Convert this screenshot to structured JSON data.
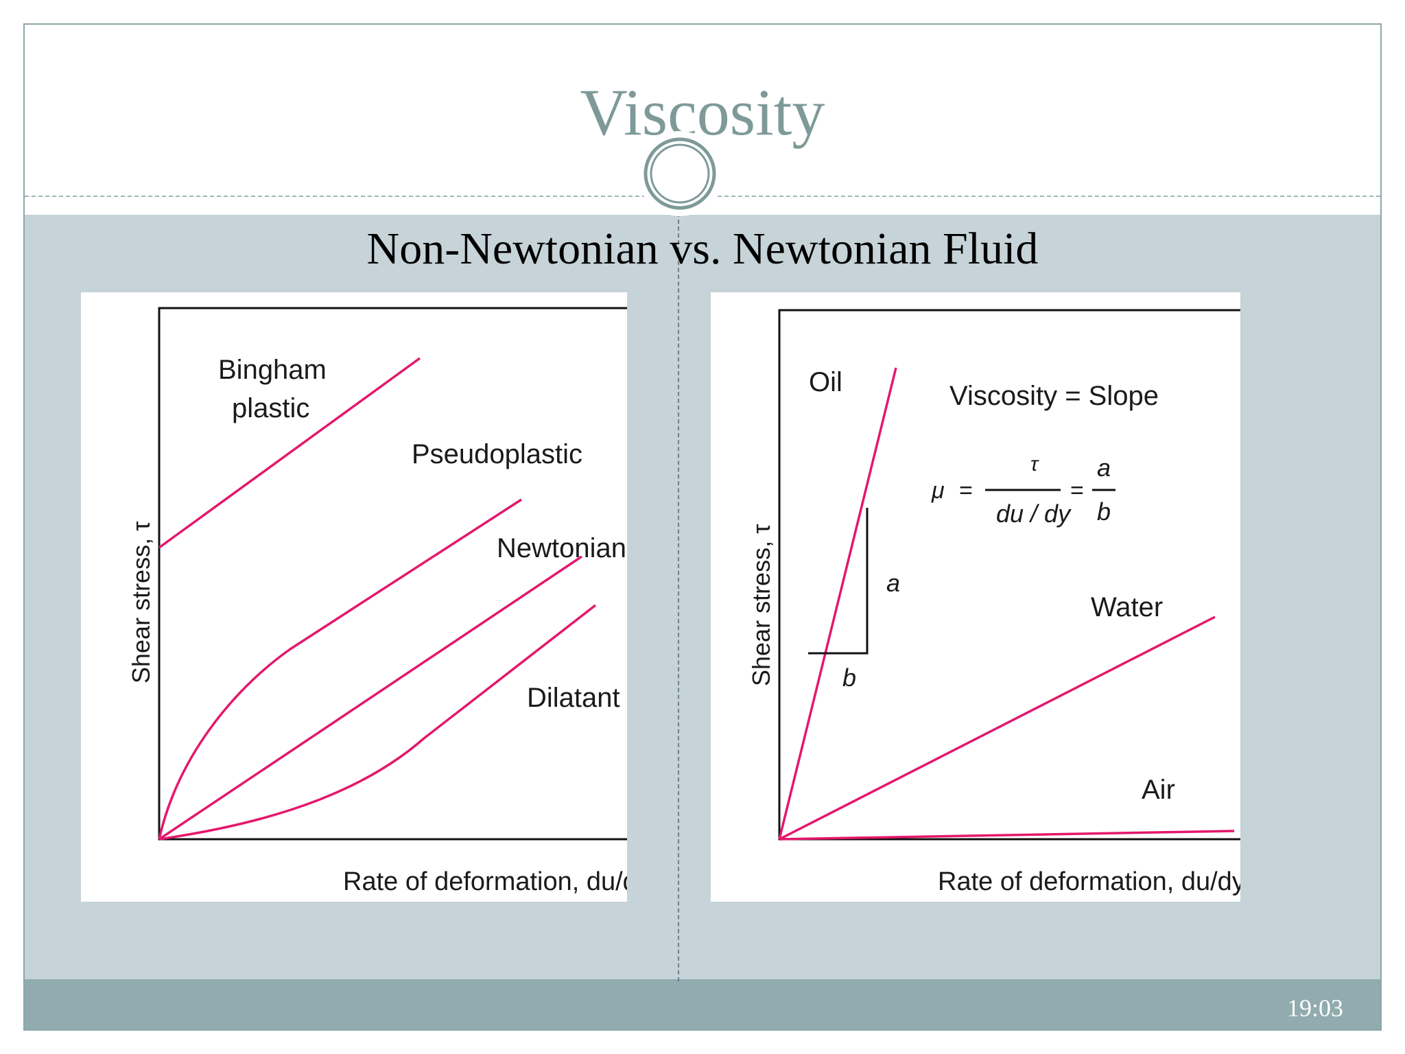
{
  "slide": {
    "title": "Viscosity",
    "subtitle": "Non-Newtonian vs. Newtonian Fluid",
    "time": "19:03"
  },
  "left_diagram": {
    "ylabel": "Shear stress, τ",
    "xlabel": "Rate of deformation, du/dy",
    "curves": {
      "bingham_line1": "Bingham",
      "bingham_line2": "plastic",
      "pseudoplastic": "Pseudoplastic",
      "newtonian": "Newtonian",
      "dilatant": "Dilatant"
    }
  },
  "right_diagram": {
    "ylabel": "Shear stress, τ",
    "xlabel": "Rate of deformation, du/dy",
    "oil": "Oil",
    "water": "Water",
    "air": "Air",
    "heading": "Viscosity = Slope",
    "formula_mu": "μ",
    "formula_eq": "=",
    "formula_tau": "τ",
    "formula_dudy": "du / dy",
    "formula_a": "a",
    "formula_b": "b",
    "slope_a": "a",
    "slope_b": "b"
  },
  "colors": {
    "curve": "#e3186c",
    "title": "#7e9a98",
    "band": "#c6d3d8",
    "footer": "#91abae"
  }
}
